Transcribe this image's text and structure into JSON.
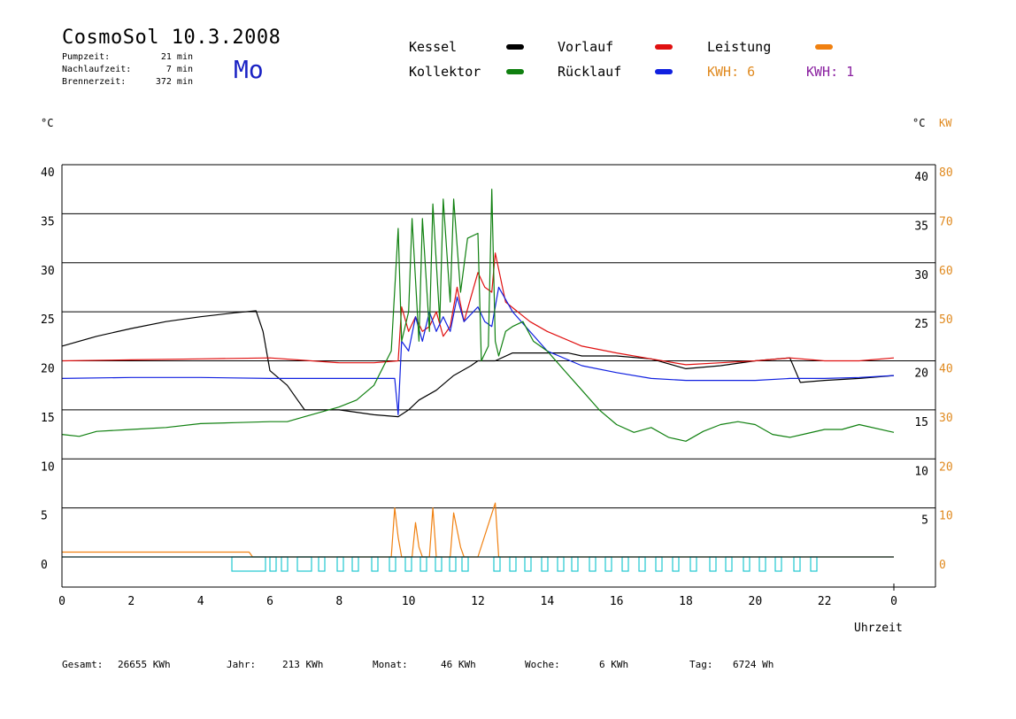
{
  "header": {
    "title": "CosmoSol 10.3.2008",
    "day": "Mo",
    "stats": [
      {
        "label": "Pumpzeit:",
        "value": "21 min"
      },
      {
        "label": "Nachlaufzeit:",
        "value": "7 min"
      },
      {
        "label": "Brennerzeit:",
        "value": "372 min"
      }
    ]
  },
  "legend": {
    "items": [
      {
        "label": "Kessel",
        "color": "#000000"
      },
      {
        "label": "Vorlauf",
        "color": "#e01010"
      },
      {
        "label": "Leistung",
        "color": "#f08010"
      },
      {
        "label": "Kollektor",
        "color": "#108010"
      },
      {
        "label": "Rücklauf",
        "color": "#1020e0"
      }
    ],
    "kwh_orange": "KWH: 6",
    "kwh_purple": "KWH: 1",
    "kwh_orange_color": "#e08a20",
    "kwh_purple_color": "#8a20a0"
  },
  "axes": {
    "left_unit": "°C",
    "right_unit_c": "°C",
    "right_unit_kw": "KW",
    "x_label": "Uhrzeit"
  },
  "footer": {
    "gesamt_label": "Gesamt:",
    "gesamt_value": "26655 KWh",
    "jahr_label": "Jahr:",
    "jahr_value": "213 KWh",
    "monat_label": "Monat:",
    "monat_value": "46 KWh",
    "woche_label": "Woche:",
    "woche_value": "6 KWh",
    "tag_label": "Tag:",
    "tag_value": "6724 Wh"
  },
  "chart_data": {
    "type": "line",
    "xlabel": "Uhrzeit",
    "ylabel": "°C",
    "ylabel_right": "KW",
    "xlim": [
      0,
      24
    ],
    "ylim": [
      0,
      40
    ],
    "ylim_right": [
      0,
      80
    ],
    "x_ticks": [
      "0",
      "2",
      "4",
      "6",
      "8",
      "10",
      "12",
      "14",
      "16",
      "18",
      "20",
      "22",
      "0"
    ],
    "y_ticks_left": [
      "0",
      "5",
      "10",
      "15",
      "20",
      "25",
      "30",
      "35",
      "40"
    ],
    "y_ticks_right_c": [
      "5",
      "10",
      "15",
      "20",
      "25",
      "30",
      "35",
      "40"
    ],
    "y_ticks_right_kw": [
      "0",
      "10",
      "20",
      "30",
      "40",
      "50",
      "60",
      "70",
      "80"
    ],
    "grid": true,
    "series": [
      {
        "name": "Kessel",
        "color": "#000000",
        "x": [
          0,
          1,
          2,
          3,
          4,
          5,
          5.6,
          5.8,
          6,
          6.5,
          6.8,
          7,
          8,
          9,
          9.7,
          10,
          10.3,
          10.8,
          11.3,
          11.8,
          12,
          12.5,
          13,
          14,
          14.6,
          15,
          16,
          17,
          18,
          19,
          20,
          21,
          21.3,
          22,
          23,
          24
        ],
        "y": [
          21.5,
          22.5,
          23.3,
          24,
          24.5,
          24.9,
          25.1,
          23,
          19,
          17.5,
          16,
          15,
          15,
          14.5,
          14.3,
          15,
          16,
          17,
          18.5,
          19.5,
          20,
          20,
          20.8,
          20.8,
          20.8,
          20.5,
          20.5,
          20.2,
          19.2,
          19.5,
          20,
          20.3,
          17.8,
          18,
          18.2,
          18.5
        ]
      },
      {
        "name": "Vorlauf",
        "color": "#e01010",
        "x": [
          0,
          2,
          4,
          6,
          8,
          9,
          9.7,
          9.8,
          10,
          10.2,
          10.4,
          10.6,
          10.8,
          11,
          11.2,
          11.4,
          11.6,
          12,
          12.2,
          12.4,
          12.5,
          12.8,
          13.5,
          14,
          15,
          16,
          17,
          18,
          19,
          20,
          21,
          22,
          23,
          24
        ],
        "y": [
          20,
          20.1,
          20.2,
          20.3,
          19.8,
          19.8,
          20,
          25.5,
          23,
          24.5,
          23,
          23.5,
          25,
          22.5,
          23.5,
          27.5,
          24,
          29,
          27.5,
          27,
          31,
          26,
          24,
          23,
          21.5,
          20.8,
          20.2,
          19.6,
          19.8,
          20,
          20.3,
          20,
          20,
          20.3
        ]
      },
      {
        "name": "Rücklauf",
        "color": "#1020e0",
        "x": [
          0,
          2,
          4,
          6,
          8,
          9,
          9.6,
          9.7,
          9.8,
          10,
          10.2,
          10.4,
          10.6,
          10.8,
          11,
          11.2,
          11.4,
          11.6,
          12,
          12.2,
          12.4,
          12.6,
          13,
          14,
          15,
          16,
          17,
          18,
          19,
          20,
          21,
          22,
          23,
          24
        ],
        "y": [
          18.2,
          18.3,
          18.3,
          18.2,
          18.2,
          18.2,
          18.2,
          14.5,
          22,
          21,
          24.5,
          22,
          25,
          23,
          24.5,
          23,
          26.5,
          24,
          25.5,
          24,
          23.5,
          27.5,
          25,
          21,
          19.5,
          18.8,
          18.2,
          18,
          18,
          18,
          18.2,
          18.2,
          18.3,
          18.5
        ]
      },
      {
        "name": "Kollektor",
        "color": "#108010",
        "x": [
          0,
          0.5,
          1,
          2,
          3,
          4,
          5,
          6,
          6.5,
          7,
          7.5,
          8,
          8.5,
          9,
          9.5,
          9.7,
          9.8,
          10,
          10.1,
          10.3,
          10.4,
          10.6,
          10.7,
          10.9,
          11,
          11.2,
          11.3,
          11.5,
          11.7,
          12,
          12.1,
          12.3,
          12.4,
          12.5,
          12.6,
          12.8,
          13,
          13.3,
          13.6,
          14,
          14.5,
          15,
          15.5,
          16,
          16.5,
          17,
          17.5,
          18,
          18.5,
          19,
          19.5,
          20,
          20.5,
          21,
          21.5,
          22,
          22.5,
          23,
          24
        ],
        "y": [
          12.5,
          12.3,
          12.8,
          13,
          13.2,
          13.6,
          13.7,
          13.8,
          13.8,
          14.3,
          14.8,
          15.3,
          16,
          17.5,
          21,
          33.5,
          22,
          25,
          34.5,
          22,
          34.5,
          23,
          36,
          24,
          36.5,
          26,
          36.5,
          27,
          32.5,
          33,
          20,
          21.5,
          37.5,
          22,
          20.5,
          23,
          23.5,
          24,
          22,
          21,
          19,
          17,
          15,
          13.5,
          12.7,
          13.2,
          12.2,
          11.8,
          12.8,
          13.5,
          13.8,
          13.5,
          12.5,
          12.2,
          12.6,
          13,
          13,
          13.5,
          12.7
        ]
      },
      {
        "name": "Leistung",
        "color": "#f08010",
        "x": [
          0,
          1,
          2,
          3,
          4,
          5,
          5.4,
          5.5,
          9.5,
          9.6,
          9.7,
          9.8,
          10.1,
          10.2,
          10.3,
          10.4,
          10.6,
          10.7,
          10.8,
          11.1,
          11.2,
          11.3,
          11.5,
          11.6,
          12,
          12.5,
          12.6,
          24
        ],
        "y_kw": [
          1,
          1,
          1,
          1,
          1,
          1,
          1,
          0,
          0,
          10,
          4,
          0,
          0,
          7,
          2,
          0,
          0,
          10,
          0,
          0,
          0,
          9,
          2,
          0,
          0,
          11,
          0,
          0
        ]
      }
    ]
  }
}
